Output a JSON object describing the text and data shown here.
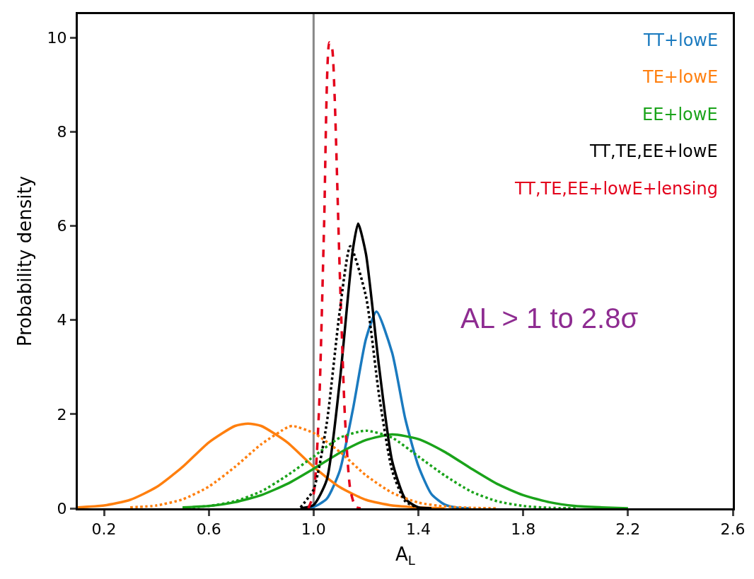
{
  "chart_data": {
    "type": "line",
    "xlabel": "A$_{L}$",
    "ylabel": "Probability density",
    "xlim": [
      0.1,
      2.6
    ],
    "ylim": [
      0,
      10.5
    ],
    "xticks": [
      {
        "value": 0.2,
        "label": "0.2"
      },
      {
        "value": 0.6,
        "label": "0.6"
      },
      {
        "value": 1.0,
        "label": "1.0"
      },
      {
        "value": 1.4,
        "label": "1.4"
      },
      {
        "value": 1.8,
        "label": "1.8"
      },
      {
        "value": 2.2,
        "label": "2.2"
      },
      {
        "value": 2.6,
        "label": "2.6"
      }
    ],
    "yticks": [
      0,
      2,
      4,
      6,
      8,
      10
    ],
    "grid": false,
    "legend": "top right",
    "line_style": "solid",
    "marker": "none",
    "ref_lines": [
      {
        "axis": "x",
        "value": 1.0,
        "color": "#888888"
      }
    ],
    "annotations": [
      "AL > 1 to 2.8σ"
    ],
    "series": [
      {
        "name": "TT+lowE",
        "color": "#1a7abf",
        "x": [
          0.95,
          1.0,
          1.05,
          1.1,
          1.15,
          1.2,
          1.24,
          1.3,
          1.35,
          1.4,
          1.45,
          1.5,
          1.55,
          1.6
        ],
        "values": [
          0,
          0.03,
          0.2,
          0.8,
          2.1,
          3.6,
          4.18,
          3.3,
          1.9,
          0.9,
          0.3,
          0.08,
          0.01,
          0
        ]
      },
      {
        "name": "TE+lowE",
        "color": "#ff7f0e",
        "x": [
          0.1,
          0.2,
          0.3,
          0.4,
          0.5,
          0.6,
          0.7,
          0.75,
          0.8,
          0.9,
          1.0,
          1.1,
          1.2,
          1.3,
          1.4,
          1.5
        ],
        "values": [
          0.02,
          0.06,
          0.18,
          0.45,
          0.88,
          1.4,
          1.75,
          1.8,
          1.75,
          1.4,
          0.88,
          0.45,
          0.18,
          0.06,
          0.02,
          0
        ]
      },
      {
        "name": "EE+lowE",
        "color": "#1aa31a",
        "x": [
          0.5,
          0.6,
          0.7,
          0.8,
          0.9,
          1.0,
          1.1,
          1.2,
          1.3,
          1.4,
          1.5,
          1.6,
          1.7,
          1.8,
          1.9,
          2.0,
          2.1,
          2.2
        ],
        "values": [
          0.02,
          0.05,
          0.13,
          0.28,
          0.52,
          0.84,
          1.18,
          1.45,
          1.57,
          1.47,
          1.2,
          0.85,
          0.52,
          0.28,
          0.13,
          0.05,
          0.02,
          0
        ]
      },
      {
        "name": "TT,TE,EE+lowE",
        "color": "#000000",
        "x": [
          0.95,
          1.0,
          1.05,
          1.1,
          1.15,
          1.17,
          1.2,
          1.25,
          1.3,
          1.35,
          1.4,
          1.45
        ],
        "values": [
          0,
          0.07,
          0.6,
          2.7,
          5.5,
          6.05,
          5.4,
          3.0,
          1.0,
          0.2,
          0.02,
          0
        ]
      },
      {
        "name": "TT,TE,EE+lowE+lensing",
        "color": "#e3001b",
        "line_style": "dashed",
        "x": [
          0.98,
          1.0,
          1.02,
          1.04,
          1.06,
          1.07,
          1.08,
          1.1,
          1.12,
          1.14,
          1.16,
          1.18
        ],
        "values": [
          0,
          0.3,
          2.0,
          6.0,
          9.9,
          9.8,
          8.8,
          5.0,
          1.9,
          0.4,
          0.03,
          0
        ]
      },
      {
        "color": "#ff7f0e",
        "line_style": "dotted",
        "x": [
          0.3,
          0.4,
          0.5,
          0.6,
          0.7,
          0.8,
          0.9,
          0.92,
          1.0,
          1.1,
          1.2,
          1.3,
          1.4,
          1.5,
          1.6,
          1.7
        ],
        "values": [
          0.02,
          0.06,
          0.19,
          0.46,
          0.88,
          1.36,
          1.72,
          1.75,
          1.6,
          1.2,
          0.7,
          0.33,
          0.12,
          0.04,
          0.01,
          0
        ]
      },
      {
        "color": "#1aa31a",
        "line_style": "dotted",
        "x": [
          0.5,
          0.6,
          0.7,
          0.8,
          0.9,
          1.0,
          1.1,
          1.2,
          1.3,
          1.4,
          1.5,
          1.6,
          1.7,
          1.8,
          1.9,
          2.0
        ],
        "values": [
          0.01,
          0.05,
          0.15,
          0.36,
          0.7,
          1.1,
          1.5,
          1.65,
          1.5,
          1.1,
          0.7,
          0.36,
          0.15,
          0.05,
          0.01,
          0
        ]
      },
      {
        "color": "#000000",
        "line_style": "dotted",
        "x": [
          0.95,
          1.0,
          1.05,
          1.1,
          1.14,
          1.2,
          1.25,
          1.3,
          1.35,
          1.4,
          1.45
        ],
        "values": [
          0.02,
          0.4,
          1.8,
          4.2,
          5.57,
          4.5,
          2.4,
          0.8,
          0.15,
          0.01,
          0
        ]
      }
    ]
  }
}
